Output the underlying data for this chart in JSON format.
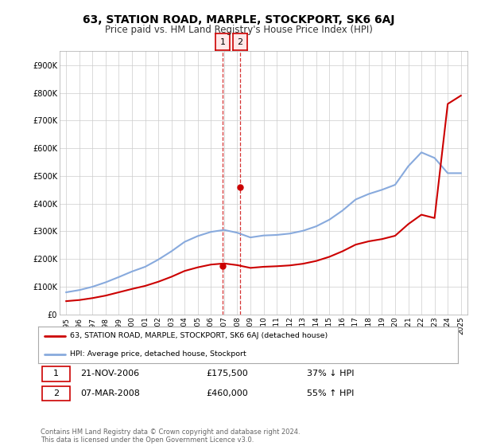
{
  "title": "63, STATION ROAD, MARPLE, STOCKPORT, SK6 6AJ",
  "subtitle": "Price paid vs. HM Land Registry's House Price Index (HPI)",
  "title_fontsize": 10,
  "subtitle_fontsize": 8.5,
  "hpi_x": [
    1995,
    1996,
    1997,
    1998,
    1999,
    2000,
    2001,
    2002,
    2003,
    2004,
    2005,
    2006,
    2007,
    2008,
    2009,
    2010,
    2011,
    2012,
    2013,
    2014,
    2015,
    2016,
    2017,
    2018,
    2019,
    2020,
    2021,
    2022,
    2023,
    2024,
    2025
  ],
  "hpi_y": [
    80000,
    88000,
    100000,
    116000,
    135000,
    155000,
    172000,
    198000,
    228000,
    262000,
    283000,
    298000,
    305000,
    295000,
    278000,
    285000,
    287000,
    292000,
    302000,
    318000,
    342000,
    375000,
    415000,
    435000,
    450000,
    468000,
    535000,
    585000,
    565000,
    510000,
    510000
  ],
  "prop_x": [
    1995,
    1996,
    1997,
    1998,
    1999,
    2000,
    2001,
    2002,
    2003,
    2004,
    2005,
    2006,
    2007,
    2008,
    2009,
    2010,
    2011,
    2012,
    2013,
    2014,
    2015,
    2016,
    2017,
    2018,
    2019,
    2020,
    2021,
    2022,
    2023,
    2024,
    2025
  ],
  "prop_y": [
    48000,
    52000,
    59000,
    68000,
    80000,
    92000,
    103000,
    118000,
    136000,
    157000,
    170000,
    180000,
    184000,
    178000,
    168000,
    172000,
    174000,
    177000,
    183000,
    193000,
    208000,
    228000,
    252000,
    264000,
    272000,
    284000,
    326000,
    360000,
    348000,
    760000,
    790000
  ],
  "sale1_year": 2006.9,
  "sale1_value": 175500,
  "sale2_year": 2008.2,
  "sale2_value": 460000,
  "sale1_date": "21-NOV-2006",
  "sale1_price": "£175,500",
  "sale1_hpi": "37% ↓ HPI",
  "sale2_date": "07-MAR-2008",
  "sale2_price": "£460,000",
  "sale2_hpi": "55% ↑ HPI",
  "property_color": "#cc0000",
  "hpi_color": "#88aadd",
  "ylim_min": 0,
  "ylim_max": 950000,
  "yticks": [
    0,
    100000,
    200000,
    300000,
    400000,
    500000,
    600000,
    700000,
    800000,
    900000
  ],
  "ytick_labels": [
    "£0",
    "£100K",
    "£200K",
    "£300K",
    "£400K",
    "£500K",
    "£600K",
    "£700K",
    "£800K",
    "£900K"
  ],
  "xtick_years": [
    1995,
    1996,
    1997,
    1998,
    1999,
    2000,
    2001,
    2002,
    2003,
    2004,
    2005,
    2006,
    2007,
    2008,
    2009,
    2010,
    2011,
    2012,
    2013,
    2014,
    2015,
    2016,
    2017,
    2018,
    2019,
    2020,
    2021,
    2022,
    2023,
    2024,
    2025
  ],
  "xlim_left": 1994.5,
  "xlim_right": 2025.5,
  "legend_property": "63, STATION ROAD, MARPLE, STOCKPORT, SK6 6AJ (detached house)",
  "legend_hpi": "HPI: Average price, detached house, Stockport",
  "footnote": "Contains HM Land Registry data © Crown copyright and database right 2024.\nThis data is licensed under the Open Government Licence v3.0.",
  "background_color": "#ffffff",
  "grid_color": "#cccccc",
  "sale_box_facecolor": "#ffe8e8"
}
